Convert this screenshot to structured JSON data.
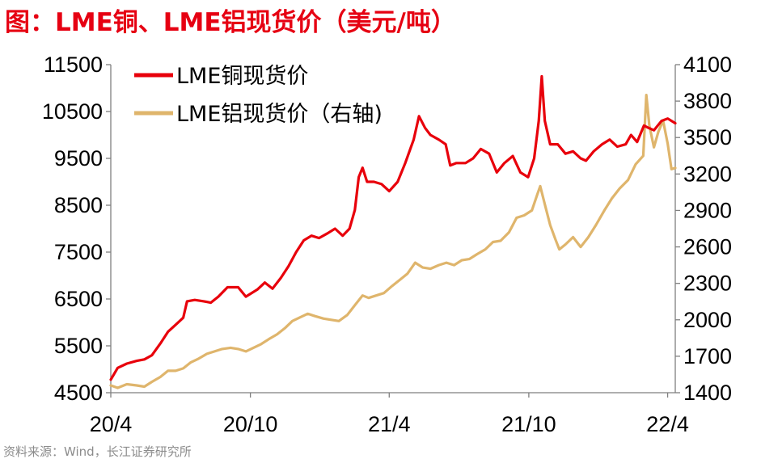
{
  "header": {
    "title": "图：LME铜、LME铝现货价（美元/吨）"
  },
  "footer": {
    "source": "资料来源：Wind，长江证券研究所"
  },
  "chart_data": {
    "type": "line",
    "title": "图：LME铜、LME铝现货价（美元/吨）",
    "x_ticks": [
      "20/4",
      "20/10",
      "21/4",
      "21/10",
      "22/4"
    ],
    "x_range": [
      "2020-04-01",
      "2022-04-11"
    ],
    "y_left": {
      "label": "",
      "ticks": [
        "4500",
        "5500",
        "6500",
        "7500",
        "8500",
        "9500",
        "10500",
        "11500"
      ],
      "range": [
        4500,
        11500
      ]
    },
    "y_right": {
      "label": "",
      "ticks": [
        "1400",
        "1700",
        "2000",
        "2300",
        "2600",
        "2900",
        "3200",
        "3500",
        "3800",
        "4100"
      ],
      "range": [
        1400,
        4100
      ]
    },
    "legend": {
      "placement": "top-left",
      "entries": [
        "LME铜现货价",
        "LME铝现货价（右轴)"
      ]
    },
    "grid": false,
    "colors": {
      "copper": "#e8000b",
      "aluminum": "#dfb56c",
      "title": "#e60012",
      "source": "#8c8c8c"
    },
    "series": [
      {
        "name": "LME铜现货价",
        "axis": "left",
        "color": "#e8000b",
        "points": [
          [
            "2020-04-01",
            4780
          ],
          [
            "2020-04-10",
            5030
          ],
          [
            "2020-04-22",
            5120
          ],
          [
            "2020-05-05",
            5180
          ],
          [
            "2020-05-15",
            5210
          ],
          [
            "2020-05-25",
            5300
          ],
          [
            "2020-06-05",
            5550
          ],
          [
            "2020-06-15",
            5800
          ],
          [
            "2020-06-25",
            5950
          ],
          [
            "2020-07-05",
            6100
          ],
          [
            "2020-07-10",
            6450
          ],
          [
            "2020-07-20",
            6480
          ],
          [
            "2020-08-01",
            6450
          ],
          [
            "2020-08-10",
            6420
          ],
          [
            "2020-08-20",
            6550
          ],
          [
            "2020-09-01",
            6750
          ],
          [
            "2020-09-15",
            6750
          ],
          [
            "2020-09-25",
            6550
          ],
          [
            "2020-10-10",
            6700
          ],
          [
            "2020-10-20",
            6850
          ],
          [
            "2020-10-30",
            6720
          ],
          [
            "2020-11-10",
            6950
          ],
          [
            "2020-11-20",
            7200
          ],
          [
            "2020-11-30",
            7500
          ],
          [
            "2020-12-10",
            7750
          ],
          [
            "2020-12-20",
            7850
          ],
          [
            "2020-12-30",
            7800
          ],
          [
            "2021-01-10",
            7900
          ],
          [
            "2021-01-20",
            8000
          ],
          [
            "2021-01-30",
            7850
          ],
          [
            "2021-02-08",
            8000
          ],
          [
            "2021-02-15",
            8400
          ],
          [
            "2021-02-20",
            9100
          ],
          [
            "2021-02-25",
            9300
          ],
          [
            "2021-03-03",
            9000
          ],
          [
            "2021-03-12",
            9000
          ],
          [
            "2021-03-22",
            8950
          ],
          [
            "2021-04-01",
            8800
          ],
          [
            "2021-04-12",
            9000
          ],
          [
            "2021-04-22",
            9400
          ],
          [
            "2021-05-03",
            9900
          ],
          [
            "2021-05-10",
            10400
          ],
          [
            "2021-05-18",
            10150
          ],
          [
            "2021-05-25",
            10000
          ],
          [
            "2021-06-05",
            9900
          ],
          [
            "2021-06-14",
            9800
          ],
          [
            "2021-06-20",
            9350
          ],
          [
            "2021-06-28",
            9400
          ],
          [
            "2021-07-10",
            9400
          ],
          [
            "2021-07-20",
            9500
          ],
          [
            "2021-07-30",
            9700
          ],
          [
            "2021-08-10",
            9600
          ],
          [
            "2021-08-20",
            9200
          ],
          [
            "2021-08-30",
            9400
          ],
          [
            "2021-09-10",
            9550
          ],
          [
            "2021-09-20",
            9200
          ],
          [
            "2021-09-30",
            9100
          ],
          [
            "2021-10-08",
            9500
          ],
          [
            "2021-10-14",
            10300
          ],
          [
            "2021-10-18",
            11250
          ],
          [
            "2021-10-22",
            10300
          ],
          [
            "2021-10-29",
            9800
          ],
          [
            "2021-11-08",
            9800
          ],
          [
            "2021-11-18",
            9600
          ],
          [
            "2021-11-28",
            9650
          ],
          [
            "2021-12-08",
            9500
          ],
          [
            "2021-12-15",
            9450
          ],
          [
            "2021-12-25",
            9650
          ],
          [
            "2022-01-05",
            9800
          ],
          [
            "2022-01-15",
            9900
          ],
          [
            "2022-01-25",
            9750
          ],
          [
            "2022-02-05",
            9800
          ],
          [
            "2022-02-12",
            10000
          ],
          [
            "2022-02-20",
            9850
          ],
          [
            "2022-03-01",
            10200
          ],
          [
            "2022-03-07",
            10150
          ],
          [
            "2022-03-14",
            10100
          ],
          [
            "2022-03-24",
            10300
          ],
          [
            "2022-04-01",
            10350
          ],
          [
            "2022-04-11",
            10250
          ]
        ]
      },
      {
        "name": "LME铝现货价（右轴)",
        "axis": "right",
        "color": "#dfb56c",
        "points": [
          [
            "2020-04-01",
            1460
          ],
          [
            "2020-04-10",
            1440
          ],
          [
            "2020-04-22",
            1470
          ],
          [
            "2020-05-05",
            1460
          ],
          [
            "2020-05-15",
            1450
          ],
          [
            "2020-05-25",
            1490
          ],
          [
            "2020-06-05",
            1530
          ],
          [
            "2020-06-15",
            1580
          ],
          [
            "2020-06-25",
            1580
          ],
          [
            "2020-07-05",
            1600
          ],
          [
            "2020-07-15",
            1650
          ],
          [
            "2020-07-25",
            1680
          ],
          [
            "2020-08-05",
            1720
          ],
          [
            "2020-08-15",
            1740
          ],
          [
            "2020-08-25",
            1760
          ],
          [
            "2020-09-05",
            1770
          ],
          [
            "2020-09-15",
            1760
          ],
          [
            "2020-09-25",
            1740
          ],
          [
            "2020-10-05",
            1770
          ],
          [
            "2020-10-15",
            1800
          ],
          [
            "2020-10-25",
            1840
          ],
          [
            "2020-11-05",
            1880
          ],
          [
            "2020-11-15",
            1930
          ],
          [
            "2020-11-25",
            1990
          ],
          [
            "2020-12-05",
            2020
          ],
          [
            "2020-12-15",
            2050
          ],
          [
            "2020-12-25",
            2030
          ],
          [
            "2021-01-05",
            2010
          ],
          [
            "2021-01-15",
            2000
          ],
          [
            "2021-01-25",
            1990
          ],
          [
            "2021-02-05",
            2040
          ],
          [
            "2021-02-15",
            2120
          ],
          [
            "2021-02-25",
            2200
          ],
          [
            "2021-03-05",
            2180
          ],
          [
            "2021-03-15",
            2200
          ],
          [
            "2021-03-25",
            2220
          ],
          [
            "2021-04-05",
            2280
          ],
          [
            "2021-04-15",
            2330
          ],
          [
            "2021-04-25",
            2380
          ],
          [
            "2021-05-05",
            2470
          ],
          [
            "2021-05-15",
            2430
          ],
          [
            "2021-05-25",
            2420
          ],
          [
            "2021-06-05",
            2450
          ],
          [
            "2021-06-15",
            2470
          ],
          [
            "2021-06-25",
            2450
          ],
          [
            "2021-07-05",
            2490
          ],
          [
            "2021-07-15",
            2500
          ],
          [
            "2021-07-25",
            2540
          ],
          [
            "2021-08-05",
            2580
          ],
          [
            "2021-08-15",
            2640
          ],
          [
            "2021-08-25",
            2650
          ],
          [
            "2021-09-05",
            2720
          ],
          [
            "2021-09-15",
            2840
          ],
          [
            "2021-09-25",
            2860
          ],
          [
            "2021-10-05",
            2900
          ],
          [
            "2021-10-12",
            3030
          ],
          [
            "2021-10-16",
            3100
          ],
          [
            "2021-10-22",
            2950
          ],
          [
            "2021-10-29",
            2780
          ],
          [
            "2021-11-05",
            2660
          ],
          [
            "2021-11-10",
            2580
          ],
          [
            "2021-11-18",
            2620
          ],
          [
            "2021-11-28",
            2680
          ],
          [
            "2021-12-08",
            2600
          ],
          [
            "2021-12-18",
            2680
          ],
          [
            "2021-12-28",
            2780
          ],
          [
            "2022-01-08",
            2900
          ],
          [
            "2022-01-18",
            3000
          ],
          [
            "2022-01-28",
            3080
          ],
          [
            "2022-02-08",
            3150
          ],
          [
            "2022-02-18",
            3280
          ],
          [
            "2022-02-28",
            3350
          ],
          [
            "2022-03-04",
            3850
          ],
          [
            "2022-03-08",
            3600
          ],
          [
            "2022-03-14",
            3420
          ],
          [
            "2022-03-20",
            3550
          ],
          [
            "2022-03-26",
            3640
          ],
          [
            "2022-04-01",
            3450
          ],
          [
            "2022-04-06",
            3240
          ],
          [
            "2022-04-11",
            3250
          ]
        ]
      }
    ]
  }
}
